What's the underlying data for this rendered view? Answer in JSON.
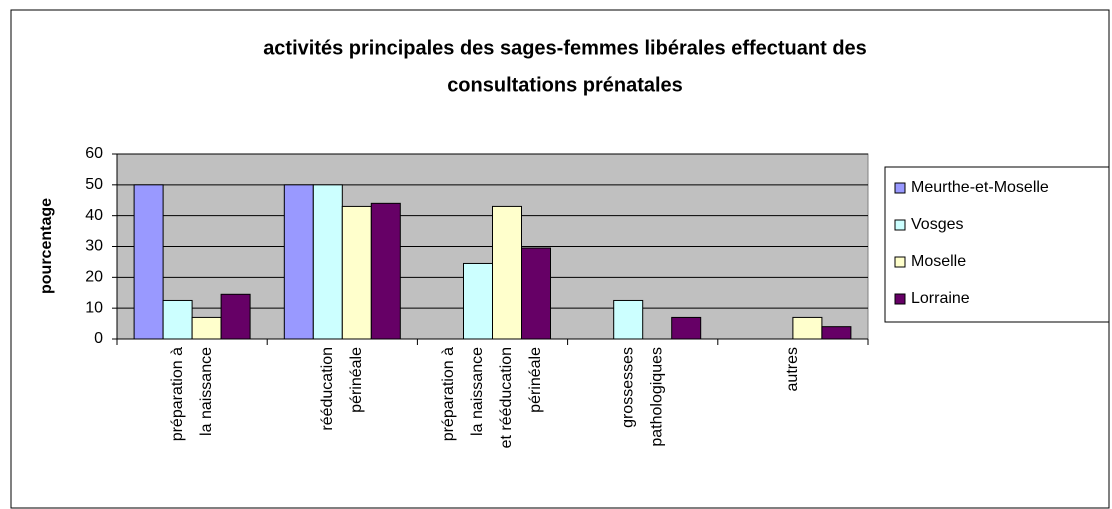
{
  "chart_data": {
    "type": "bar",
    "title": [
      "activités principales des sages-femmes libérales effectuant des",
      "consultations prénatales"
    ],
    "y_label": "pourcentage",
    "categories": [
      [
        "préparation à",
        "la naissance"
      ],
      [
        "rééducation",
        "périnéale"
      ],
      [
        "préparation à",
        "la naissance",
        "et rééducation",
        "périnéale"
      ],
      [
        "grossesses",
        "pathologiques"
      ],
      [
        "autres"
      ]
    ],
    "series": [
      {
        "name": "Meurthe-et-Moselle",
        "color": "#9999ff",
        "values": [
          50,
          50,
          0,
          0,
          0
        ]
      },
      {
        "name": "Vosges",
        "color": "#ccffff",
        "values": [
          12.5,
          50,
          24.5,
          12.5,
          0
        ]
      },
      {
        "name": "Moselle",
        "color": "#ffffcc",
        "values": [
          7,
          43,
          43,
          0,
          7
        ]
      },
      {
        "name": "Lorraine",
        "color": "#660066",
        "values": [
          14.5,
          44,
          29.5,
          7,
          4
        ]
      }
    ],
    "ylim": [
      0,
      60
    ],
    "yticks": [
      0,
      10,
      20,
      30,
      40,
      50,
      60
    ],
    "grid": true,
    "legend": "right"
  }
}
